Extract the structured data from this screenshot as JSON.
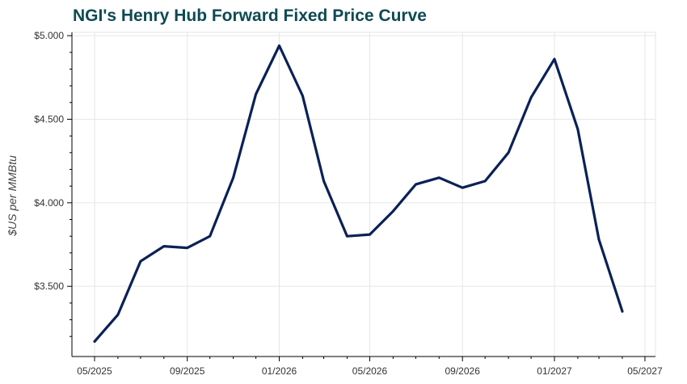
{
  "chart_data": {
    "type": "line",
    "title": "NGI's Henry Hub Forward Fixed Price Curve",
    "xlabel": "",
    "ylabel": "$US per MMBtu",
    "x_tick_labels": [
      "05/2025",
      "09/2025",
      "01/2026",
      "05/2026",
      "09/2026",
      "01/2027",
      "05/2027"
    ],
    "y_tick_labels": [
      "$3.500",
      "$4.000",
      "$4.500",
      "$5.000"
    ],
    "y_ticks": [
      3.5,
      4.0,
      4.5,
      5.0
    ],
    "ylim": [
      3.08,
      5.02
    ],
    "xlim": [
      "2025-04-01",
      "2027-05-15"
    ],
    "grid": true,
    "series": [
      {
        "color": "#0a2157",
        "x": [
          "2025-05-01",
          "2025-06-01",
          "2025-07-01",
          "2025-08-01",
          "2025-09-01",
          "2025-10-01",
          "2025-11-01",
          "2025-12-01",
          "2026-01-01",
          "2026-02-01",
          "2026-03-01",
          "2026-04-01",
          "2026-05-01",
          "2026-06-01",
          "2026-07-01",
          "2026-08-01",
          "2026-09-01",
          "2026-10-01",
          "2026-11-01",
          "2026-12-01",
          "2027-01-01",
          "2027-02-01",
          "2027-03-01",
          "2027-04-01"
        ],
        "values": [
          3.17,
          3.33,
          3.65,
          3.74,
          3.73,
          3.8,
          4.15,
          4.65,
          4.94,
          4.64,
          4.13,
          3.8,
          3.81,
          3.95,
          4.11,
          4.15,
          4.09,
          4.13,
          4.3,
          4.63,
          4.86,
          4.44,
          3.78,
          3.35
        ]
      }
    ]
  }
}
